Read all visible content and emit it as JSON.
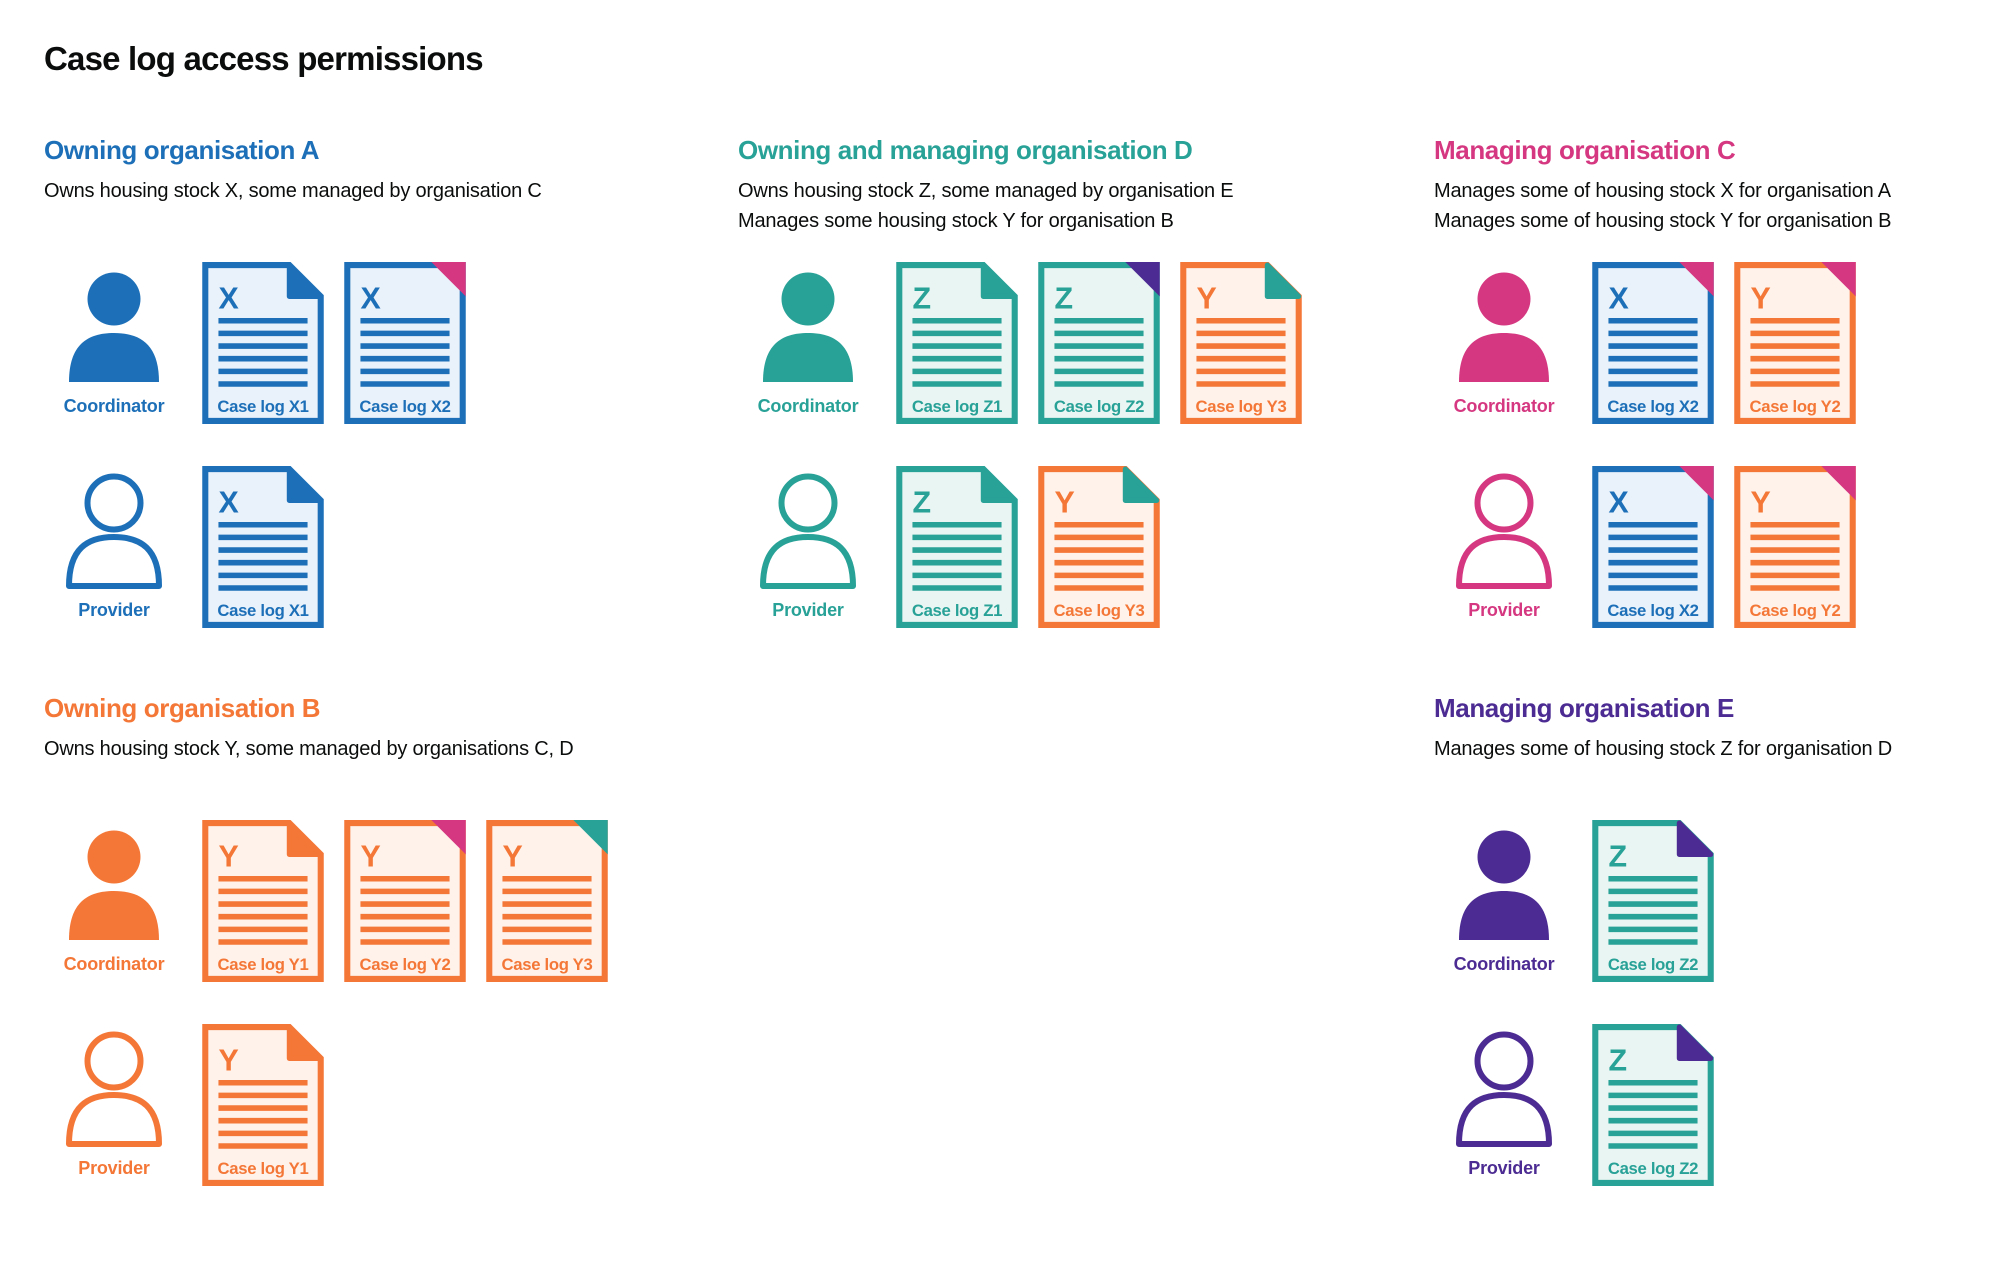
{
  "title": "Case log access permissions",
  "colors": {
    "text": "#0b0c0c",
    "blue": "#1d70b8",
    "teal": "#28a197",
    "pink": "#d53880",
    "orange": "#f47737",
    "purple": "#4c2c92",
    "blue_tint": "#e9f1fa",
    "teal_tint": "#e9f5f2",
    "orange_tint": "#fef2ea"
  },
  "organisations": [
    {
      "id": "A",
      "name": "Owning organisation A",
      "color": "blue",
      "description_lines": [
        "Owns housing stock X, some managed by organisation C"
      ],
      "grid": {
        "column": 1,
        "row": 1
      },
      "roles": [
        {
          "label": "Coordinator",
          "person_style": "filled",
          "docs": [
            {
              "stock_letter": "X",
              "label": "Case log X1",
              "doc_color": "blue",
              "fold_color": "blue",
              "fold_style": "ear"
            },
            {
              "stock_letter": "X",
              "label": "Case log X2",
              "doc_color": "blue",
              "fold_color": "pink",
              "fold_style": "flat"
            }
          ]
        },
        {
          "label": "Provider",
          "person_style": "outline",
          "docs": [
            {
              "stock_letter": "X",
              "label": "Case log X1",
              "doc_color": "blue",
              "fold_color": "blue",
              "fold_style": "ear"
            }
          ]
        }
      ]
    },
    {
      "id": "D",
      "name": "Owning and managing organisation D",
      "color": "teal",
      "description_lines": [
        "Owns housing stock Z, some managed by organisation E",
        "Manages some housing stock Y for organisation B"
      ],
      "grid": {
        "column": 2,
        "row": 1
      },
      "roles": [
        {
          "label": "Coordinator",
          "person_style": "filled",
          "docs": [
            {
              "stock_letter": "Z",
              "label": "Case log Z1",
              "doc_color": "teal",
              "fold_color": "teal",
              "fold_style": "ear"
            },
            {
              "stock_letter": "Z",
              "label": "Case log Z2",
              "doc_color": "teal",
              "fold_color": "purple",
              "fold_style": "flat"
            },
            {
              "stock_letter": "Y",
              "label": "Case log Y3",
              "doc_color": "orange",
              "fold_color": "teal",
              "fold_style": "ear"
            }
          ]
        },
        {
          "label": "Provider",
          "person_style": "outline",
          "docs": [
            {
              "stock_letter": "Z",
              "label": "Case log Z1",
              "doc_color": "teal",
              "fold_color": "teal",
              "fold_style": "ear"
            },
            {
              "stock_letter": "Y",
              "label": "Case log Y3",
              "doc_color": "orange",
              "fold_color": "teal",
              "fold_style": "ear"
            }
          ]
        }
      ]
    },
    {
      "id": "C",
      "name": "Managing organisation C",
      "color": "pink",
      "description_lines": [
        "Manages some of housing stock X for organisation A",
        "Manages some of housing stock Y for organisation B"
      ],
      "grid": {
        "column": 3,
        "row": 1
      },
      "roles": [
        {
          "label": "Coordinator",
          "person_style": "filled",
          "docs": [
            {
              "stock_letter": "X",
              "label": "Case log X2",
              "doc_color": "blue",
              "fold_color": "pink",
              "fold_style": "flat"
            },
            {
              "stock_letter": "Y",
              "label": "Case log Y2",
              "doc_color": "orange",
              "fold_color": "pink",
              "fold_style": "flat"
            }
          ]
        },
        {
          "label": "Provider",
          "person_style": "outline",
          "docs": [
            {
              "stock_letter": "X",
              "label": "Case log X2",
              "doc_color": "blue",
              "fold_color": "pink",
              "fold_style": "flat"
            },
            {
              "stock_letter": "Y",
              "label": "Case log Y2",
              "doc_color": "orange",
              "fold_color": "pink",
              "fold_style": "flat"
            }
          ]
        }
      ]
    },
    {
      "id": "B",
      "name": "Owning organisation B",
      "color": "orange",
      "description_lines": [
        "Owns housing stock Y, some managed by organisations C, D"
      ],
      "grid": {
        "column": 1,
        "row": 2
      },
      "roles": [
        {
          "label": "Coordinator",
          "person_style": "filled",
          "docs": [
            {
              "stock_letter": "Y",
              "label": "Case log Y1",
              "doc_color": "orange",
              "fold_color": "orange",
              "fold_style": "ear"
            },
            {
              "stock_letter": "Y",
              "label": "Case log Y2",
              "doc_color": "orange",
              "fold_color": "pink",
              "fold_style": "flat"
            },
            {
              "stock_letter": "Y",
              "label": "Case log Y3",
              "doc_color": "orange",
              "fold_color": "teal",
              "fold_style": "flat"
            }
          ]
        },
        {
          "label": "Provider",
          "person_style": "outline",
          "docs": [
            {
              "stock_letter": "Y",
              "label": "Case log Y1",
              "doc_color": "orange",
              "fold_color": "orange",
              "fold_style": "ear"
            }
          ]
        }
      ]
    },
    {
      "id": "E",
      "name": "Managing organisation E",
      "color": "purple",
      "description_lines": [
        "Manages some of housing stock Z for organisation D"
      ],
      "grid": {
        "column": 3,
        "row": 2
      },
      "roles": [
        {
          "label": "Coordinator",
          "person_style": "filled",
          "docs": [
            {
              "stock_letter": "Z",
              "label": "Case log Z2",
              "doc_color": "teal",
              "fold_color": "purple",
              "fold_style": "ear"
            }
          ]
        },
        {
          "label": "Provider",
          "person_style": "outline",
          "docs": [
            {
              "stock_letter": "Z",
              "label": "Case log Z2",
              "doc_color": "teal",
              "fold_color": "purple",
              "fold_style": "ear"
            }
          ]
        }
      ]
    }
  ]
}
